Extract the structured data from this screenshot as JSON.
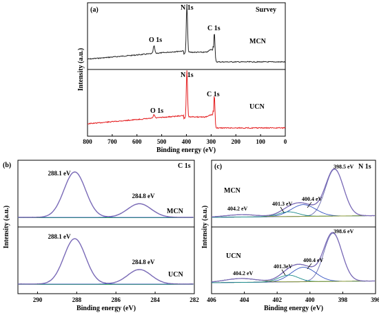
{
  "panels": {
    "a": {
      "letter": "(a)",
      "tag": "Survey",
      "ylabel": "Intensity (a.u.)",
      "xlabel": "Binding energy (eV)",
      "xticks": [
        800,
        700,
        600,
        500,
        400,
        300,
        200,
        100,
        0
      ],
      "top_sample": "MCN",
      "bottom_sample": "UCN",
      "top_peaks": [
        {
          "text": "O 1s",
          "x": 531
        },
        {
          "text": "N 1s",
          "x": 398
        },
        {
          "text": "C 1s",
          "x": 287
        }
      ],
      "bottom_peaks": [
        {
          "text": "N 1s",
          "x": 398
        },
        {
          "text": "O 1s",
          "x": 531
        },
        {
          "text": "C 1s",
          "x": 287
        }
      ]
    },
    "b": {
      "letter": "(b)",
      "tag": "C 1s",
      "ylabel": "Intensity (a.u.)",
      "xlabel": "Binding energy (eV)",
      "xticks": [
        290,
        288,
        286,
        284,
        282
      ],
      "top_sample": "MCN",
      "bottom_sample": "UCN",
      "top_peaks": [
        {
          "text": "288.1 eV"
        },
        {
          "text": "284.8 eV"
        }
      ],
      "bottom_peaks": [
        {
          "text": "288.1 eV"
        },
        {
          "text": "284.8 eV"
        }
      ]
    },
    "c": {
      "letter": "(c)",
      "tag": "N 1s",
      "ylabel": "Intensity (a.u.)",
      "xlabel": "Binding energy (eV)",
      "xticks": [
        406,
        404,
        402,
        400,
        398,
        396
      ],
      "top_sample": "MCN",
      "bottom_sample": "UCN",
      "top_peaks": [
        {
          "text": "398.5 eV"
        },
        {
          "text": "400.4 eV"
        },
        {
          "text": "401.3 eV"
        },
        {
          "text": "404.2 eV"
        }
      ],
      "bottom_peaks": [
        {
          "text": "398.6 eV"
        },
        {
          "text": "400.4 eV"
        },
        {
          "text": "401.3eV"
        },
        {
          "text": "404.2 eV"
        }
      ]
    }
  },
  "colors": {
    "mcn_survey": "#222222",
    "ucn_survey": "#e41a1c",
    "envelope": "#7b6bb8",
    "raw": "#333333",
    "fit_main": "#6a6ab0",
    "fit_blue": "#3050c0",
    "fit_green": "#2a9a5a",
    "fit_teal": "#1a8a8a",
    "baseline": "#8a9a3a"
  },
  "chart_data": [
    {
      "type": "line",
      "panel": "a",
      "title": "Survey",
      "xlabel": "Binding energy (eV)",
      "ylabel": "Intensity (a.u.)",
      "xlim": [
        800,
        0
      ],
      "series": [
        {
          "name": "MCN",
          "x": [
            800,
            700,
            600,
            531,
            500,
            420,
            398,
            380,
            300,
            287,
            200,
            100,
            0
          ],
          "values": [
            0.18,
            0.22,
            0.27,
            0.45,
            0.33,
            0.4,
            1.0,
            0.3,
            0.2,
            0.55,
            0.08,
            0.04,
            0.02
          ]
        },
        {
          "name": "UCN",
          "x": [
            800,
            700,
            600,
            531,
            500,
            420,
            398,
            380,
            300,
            287,
            200,
            100,
            0
          ],
          "values": [
            0.1,
            0.12,
            0.15,
            0.2,
            0.17,
            0.23,
            1.0,
            0.22,
            0.14,
            0.68,
            0.06,
            0.03,
            0.02
          ]
        }
      ]
    },
    {
      "type": "line",
      "panel": "b",
      "title": "C 1s",
      "xlabel": "Binding energy (eV)",
      "ylabel": "Intensity (a.u.)",
      "xlim": [
        291,
        282
      ],
      "series": [
        {
          "name": "MCN",
          "peaks": [
            {
              "center": 288.1,
              "height": 1.0
            },
            {
              "center": 284.8,
              "height": 0.3
            }
          ]
        },
        {
          "name": "UCN",
          "peaks": [
            {
              "center": 288.1,
              "height": 1.0
            },
            {
              "center": 284.8,
              "height": 0.32
            }
          ]
        }
      ]
    },
    {
      "type": "line",
      "panel": "c",
      "title": "N 1s",
      "xlabel": "Binding energy (eV)",
      "ylabel": "Intensity (a.u.)",
      "xlim": [
        406,
        396
      ],
      "series": [
        {
          "name": "MCN",
          "peaks": [
            {
              "center": 398.5,
              "height": 1.0
            },
            {
              "center": 400.4,
              "height": 0.25
            },
            {
              "center": 401.3,
              "height": 0.1
            },
            {
              "center": 404.2,
              "height": 0.05
            }
          ]
        },
        {
          "name": "UCN",
          "peaks": [
            {
              "center": 398.6,
              "height": 1.0
            },
            {
              "center": 400.4,
              "height": 0.3
            },
            {
              "center": 401.3,
              "height": 0.14
            },
            {
              "center": 404.2,
              "height": 0.08
            }
          ]
        }
      ]
    }
  ]
}
